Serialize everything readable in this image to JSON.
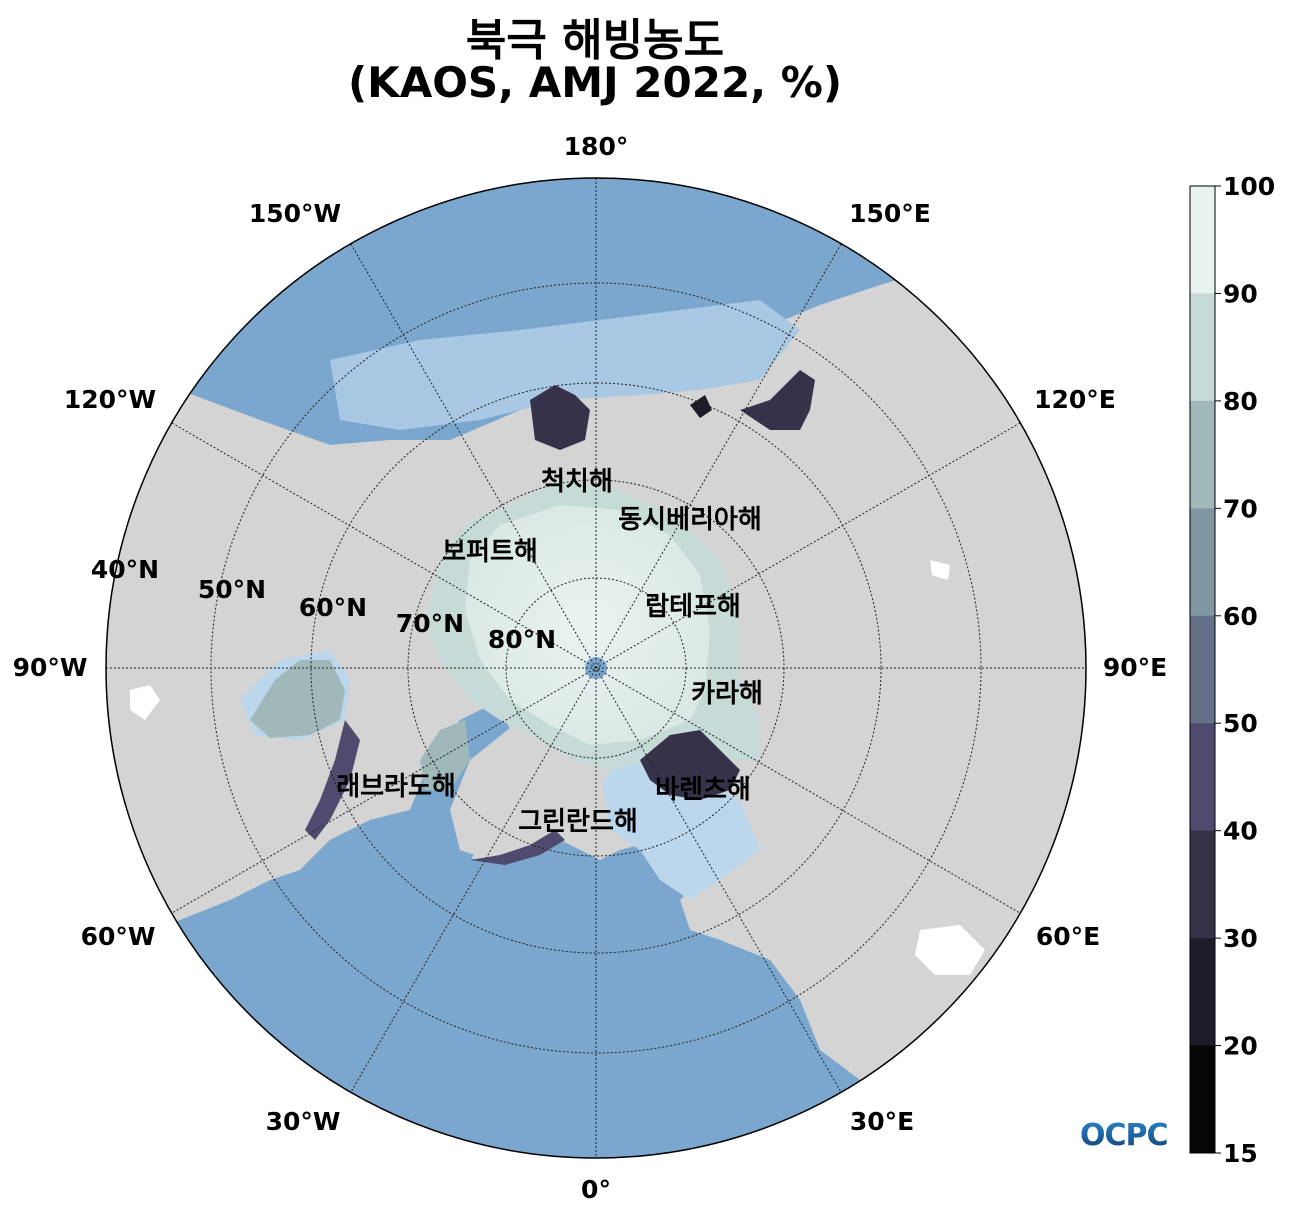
{
  "title": {
    "line1": "북극 해빙농도",
    "line2": "(KAOS, AMJ 2022, %)"
  },
  "longitude_labels": [
    "180°",
    "150°E",
    "120°E",
    "90°E",
    "60°E",
    "30°E",
    "0°",
    "30°W",
    "60°W",
    "90°W",
    "120°W",
    "150°W"
  ],
  "latitude_labels": [
    "40°N",
    "50°N",
    "60°N",
    "70°N",
    "80°N"
  ],
  "sea_labels": [
    "척치해",
    "동시베리아해",
    "보퍼트해",
    "랍테프해",
    "카라해",
    "바렌츠해",
    "래브라도해",
    "그린란드해"
  ],
  "colorbar": {
    "ticks": [
      "100",
      "90",
      "80",
      "70",
      "60",
      "50",
      "40",
      "30",
      "20",
      "15"
    ],
    "colors": [
      "#e8f2f0",
      "#c6dad8",
      "#9fb9ba",
      "#8096a3",
      "#657089",
      "#4f4b6e",
      "#35324a",
      "#1d1c28",
      "#050505"
    ]
  },
  "colors": {
    "land": "#d4d4d4",
    "ocean": "#7ba7cf",
    "ocean_shallow": "#bcd6ec",
    "ice_high": "#e8f2f0"
  },
  "logo": "OCPC"
}
